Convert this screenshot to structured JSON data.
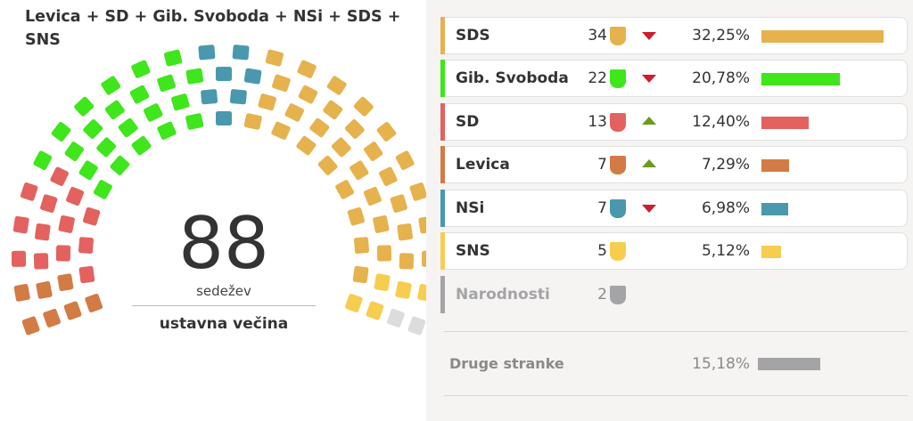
{
  "coalition": {
    "title": "Levica + SD + Gib. Svoboda + NSi + SDS + SNS",
    "seats_total": "88",
    "seats_unit": "sedežev",
    "majority_label": "ustavna večina"
  },
  "colors": {
    "sds": "#e6b24e",
    "svoboda": "#3ee61b",
    "sd": "#e3625f",
    "levica": "#d27b45",
    "nsi": "#4a98ae",
    "sns": "#f7cd4f",
    "narodnosti": "#a4a4a6",
    "narodnosti_seat_light": "#dcdcdc",
    "trend_down": "#cc1e2b",
    "trend_up": "#6a9a20"
  },
  "hemicycle": {
    "order_left_to_right": [
      "levica",
      "sd",
      "svoboda",
      "nsi",
      "sds",
      "sns",
      "narodnosti"
    ],
    "seat_counts": {
      "levica": 7,
      "sd": 13,
      "svoboda": 22,
      "nsi": 7,
      "sds": 34,
      "sns": 5,
      "narodnosti": 2
    }
  },
  "parties": [
    {
      "key": "sds",
      "name": "SDS",
      "seats": "34",
      "trend": "down",
      "trend_icon": "triangle-down-icon",
      "pct": "32,25%",
      "share": 32.25
    },
    {
      "key": "svoboda",
      "name": "Gib. Svoboda",
      "seats": "22",
      "trend": "down",
      "trend_icon": "triangle-down-icon",
      "pct": "20,78%",
      "share": 20.78
    },
    {
      "key": "sd",
      "name": "SD",
      "seats": "13",
      "trend": "up",
      "trend_icon": "triangle-up-icon",
      "pct": "12,40%",
      "share": 12.4
    },
    {
      "key": "levica",
      "name": "Levica",
      "seats": "7",
      "trend": "up",
      "trend_icon": "triangle-up-icon",
      "pct": "7,29%",
      "share": 7.29
    },
    {
      "key": "nsi",
      "name": "NSi",
      "seats": "7",
      "trend": "down",
      "trend_icon": "triangle-down-icon",
      "pct": "6,98%",
      "share": 6.98
    },
    {
      "key": "sns",
      "name": "SNS",
      "seats": "5",
      "trend": "none",
      "pct": "5,12%",
      "share": 5.12
    },
    {
      "key": "narodnosti",
      "name": "Narodnosti",
      "seats": "2",
      "trend": "none",
      "pct": "",
      "share": null
    }
  ],
  "other": {
    "name": "Druge stranke",
    "pct": "15,18%",
    "share": 15.18
  }
}
